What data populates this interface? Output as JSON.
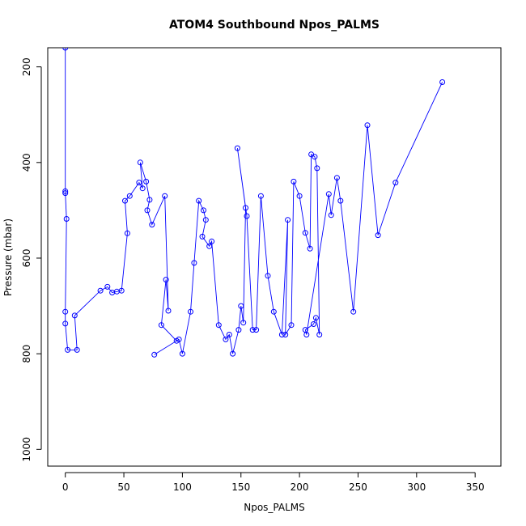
{
  "chart_data": {
    "type": "line",
    "title": "ATOM4 Southbound Npos_PALMS",
    "xlabel": "Npos_PALMS",
    "ylabel": "Pressure (mbar)",
    "xlim": [
      -15,
      372
    ],
    "ylim": [
      1035,
      160
    ],
    "y_reversed": true,
    "x_ticks": [
      0,
      50,
      100,
      150,
      200,
      250,
      300,
      350
    ],
    "y_ticks": [
      200,
      400,
      600,
      800,
      1000
    ],
    "grid": false,
    "legend": "none",
    "series": [
      {
        "color": "#0000ff",
        "x": [
          0,
          0,
          0,
          1,
          0,
          0,
          2,
          10,
          8,
          30,
          36,
          40,
          44,
          48,
          53,
          51,
          55,
          63,
          66,
          64,
          69,
          72,
          70,
          74,
          85,
          88,
          86,
          82,
          95,
          76,
          97,
          100,
          107,
          110,
          114,
          118,
          120,
          117,
          123,
          125,
          131,
          137,
          140,
          143,
          148,
          150,
          152,
          154,
          147,
          155,
          160,
          163,
          167,
          173,
          178,
          185,
          190,
          188,
          193,
          195,
          200,
          205,
          209,
          210,
          213,
          215,
          217,
          214,
          212,
          205,
          206,
          225,
          227,
          232,
          235,
          246,
          258,
          267,
          282,
          322
        ],
        "y": [
          160,
          460,
          464,
          518,
          712,
          737,
          792,
          792,
          720,
          668,
          660,
          672,
          670,
          668,
          548,
          480,
          470,
          442,
          454,
          400,
          440,
          478,
          500,
          530,
          470,
          710,
          645,
          740,
          773,
          802,
          770,
          800,
          712,
          610,
          480,
          500,
          520,
          555,
          575,
          565,
          740,
          770,
          760,
          800,
          750,
          700,
          735,
          495,
          370,
          512,
          750,
          750,
          470,
          637,
          712,
          760,
          520,
          760,
          740,
          440,
          470,
          547,
          580,
          383,
          388,
          412,
          760,
          725,
          738,
          750,
          760,
          466,
          510,
          432,
          480,
          712,
          322,
          552,
          442,
          232
        ]
      }
    ]
  }
}
